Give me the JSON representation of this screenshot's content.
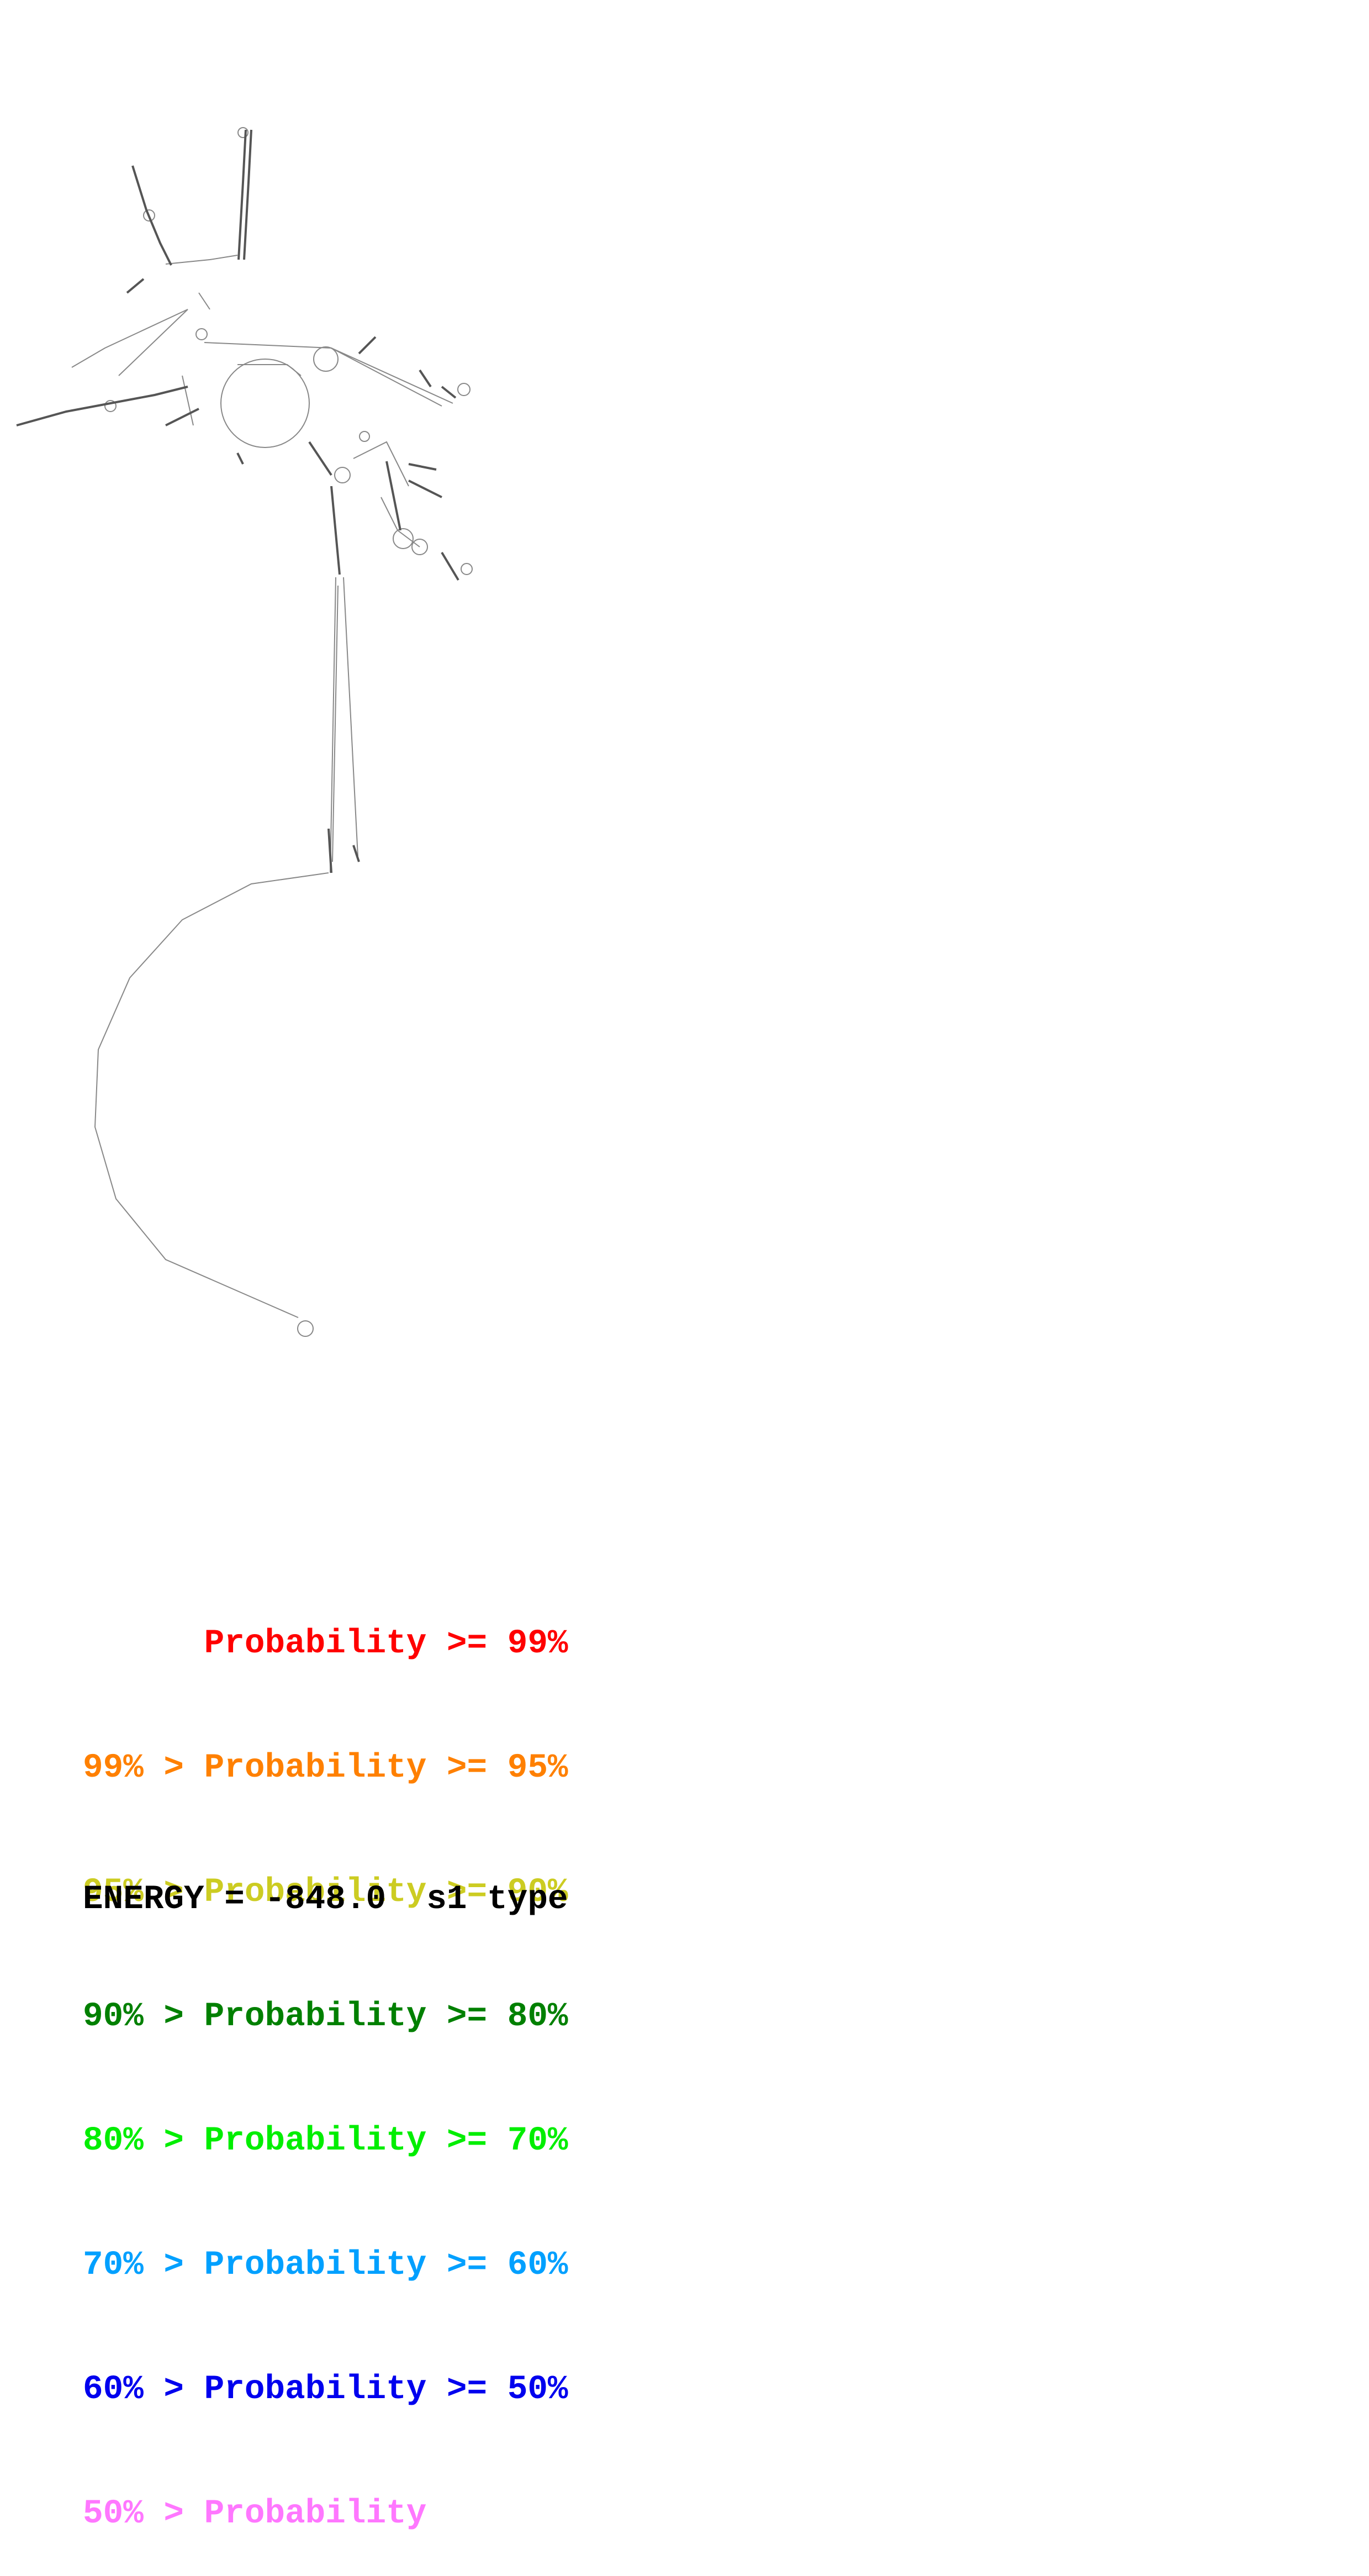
{
  "legend": {
    "rows": [
      {
        "text": "      Probability >= 99%",
        "color": "#ff0000"
      },
      {
        "text": "99% > Probability >= 95%",
        "color": "#ff8000"
      },
      {
        "text": "95% > Probability >= 90%",
        "color": "#cccc22"
      },
      {
        "text": "90% > Probability >= 80%",
        "color": "#008000"
      },
      {
        "text": "80% > Probability >= 70%",
        "color": "#00ee00"
      },
      {
        "text": "70% > Probability >= 60%",
        "color": "#00a0ff"
      },
      {
        "text": "60% > Probability >= 50%",
        "color": "#0000ee"
      },
      {
        "text": "50% > Probability",
        "color": "#ff77ff"
      }
    ]
  },
  "energy_label": "ENERGY = -848.0  s1 type",
  "colors": {
    "backbone": "#888888",
    "pair": "#555555"
  }
}
